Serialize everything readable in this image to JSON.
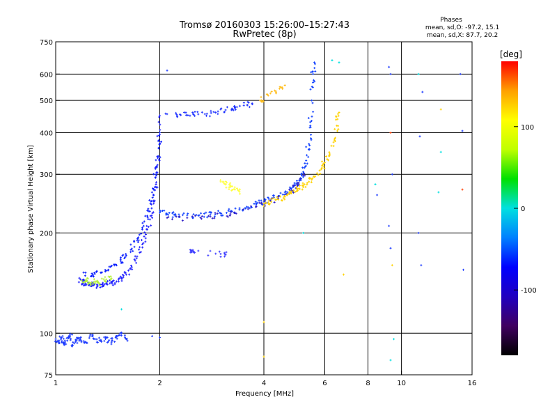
{
  "chart_data": {
    "type": "scatter",
    "title": "Tromsø 20160303 15:26:00–15:27:43",
    "subtitle": "RwPretec (8p)",
    "legend_title": "Phases",
    "legend_lines": [
      "mean, sd,O: -97.2, 15.1",
      "mean, sd,X:  87.7, 20.2"
    ],
    "xlabel": "Frequency [MHz]",
    "ylabel": "Stationary phase Virtual Height [km]",
    "x_scale": "log2",
    "y_scale": "log",
    "xlim": [
      1,
      16
    ],
    "ylim": [
      75,
      750
    ],
    "x_ticks": [
      {
        "value": 1,
        "label": "1"
      },
      {
        "value": 2,
        "label": "2"
      },
      {
        "value": 4,
        "label": "4"
      },
      {
        "value": 6,
        "label": "6"
      },
      {
        "value": 8,
        "label": "8"
      },
      {
        "value": 10,
        "label": "10"
      },
      {
        "value": 16,
        "label": "16"
      }
    ],
    "y_ticks": [
      {
        "value": 75,
        "label": "75"
      },
      {
        "value": 100,
        "label": "100"
      },
      {
        "value": 200,
        "label": "200"
      },
      {
        "value": 300,
        "label": "300"
      },
      {
        "value": 400,
        "label": "400"
      },
      {
        "value": 500,
        "label": "500"
      },
      {
        "value": 600,
        "label": "600"
      },
      {
        "value": 750,
        "label": "750"
      }
    ],
    "x_gridlines": [
      2,
      4,
      6,
      8,
      10
    ],
    "y_gridlines": [
      100,
      200,
      300,
      400,
      500,
      600
    ],
    "colorbar": {
      "label": "[deg]",
      "range": [
        -180,
        180
      ],
      "ticks": [
        {
          "value": 100,
          "label": "100"
        },
        {
          "value": 0,
          "label": "0"
        },
        {
          "value": -100,
          "label": "-100"
        }
      ],
      "colors": [
        "#000000",
        "#400060",
        "#2000c0",
        "#0000ff",
        "#0080ff",
        "#00e0e0",
        "#00e000",
        "#c0ff00",
        "#ffff00",
        "#ffa000",
        "#ff0000"
      ]
    },
    "series": [
      {
        "color": "#1e3cff",
        "points": [
          [
            1.0,
            96
          ],
          [
            1.02,
            94
          ],
          [
            1.04,
            97
          ],
          [
            1.06,
            93
          ],
          [
            1.08,
            95
          ],
          [
            1.1,
            98
          ],
          [
            1.12,
            92
          ],
          [
            1.15,
            96
          ],
          [
            1.18,
            97
          ],
          [
            1.22,
            94
          ],
          [
            1.26,
            99
          ],
          [
            1.3,
            96
          ],
          [
            1.35,
            95
          ],
          [
            1.4,
            97
          ],
          [
            1.45,
            94
          ],
          [
            1.5,
            98
          ],
          [
            1.55,
            100
          ],
          [
            1.6,
            96
          ]
        ]
      },
      {
        "color": "#2020ff",
        "points": [
          [
            1.18,
            145
          ],
          [
            1.2,
            143
          ],
          [
            1.22,
            141
          ],
          [
            1.25,
            140
          ],
          [
            1.28,
            139
          ],
          [
            1.32,
            139
          ],
          [
            1.36,
            140
          ],
          [
            1.4,
            141
          ],
          [
            1.45,
            142
          ],
          [
            1.5,
            143
          ],
          [
            1.55,
            146
          ],
          [
            1.6,
            150
          ],
          [
            1.66,
            158
          ],
          [
            1.72,
            170
          ],
          [
            1.78,
            185
          ],
          [
            1.84,
            205
          ],
          [
            1.88,
            225
          ],
          [
            1.92,
            250
          ],
          [
            1.95,
            280
          ],
          [
            1.97,
            320
          ],
          [
            1.99,
            380
          ],
          [
            2.0,
            450
          ]
        ]
      },
      {
        "color": "#0a1eff",
        "points": [
          [
            1.22,
            152
          ],
          [
            1.28,
            150
          ],
          [
            1.35,
            152
          ],
          [
            1.42,
            155
          ],
          [
            1.5,
            160
          ],
          [
            1.58,
            168
          ],
          [
            1.65,
            178
          ],
          [
            1.72,
            190
          ],
          [
            1.78,
            205
          ],
          [
            1.84,
            225
          ],
          [
            1.88,
            245
          ],
          [
            1.92,
            270
          ],
          [
            1.95,
            300
          ],
          [
            1.98,
            340
          ],
          [
            2.0,
            400
          ]
        ]
      },
      {
        "color": "#b4f03c",
        "points": [
          [
            1.2,
            142
          ],
          [
            1.23,
            144
          ],
          [
            1.26,
            141
          ],
          [
            1.3,
            143
          ],
          [
            1.34,
            141
          ],
          [
            1.4,
            145
          ],
          [
            1.45,
            146
          ]
        ]
      },
      {
        "color": "#1040ff",
        "points": [
          [
            2.0,
            230
          ],
          [
            2.1,
            228
          ],
          [
            2.2,
            227
          ],
          [
            2.4,
            226
          ],
          [
            2.6,
            226
          ],
          [
            2.8,
            227
          ],
          [
            3.0,
            229
          ],
          [
            3.2,
            232
          ],
          [
            3.4,
            235
          ],
          [
            3.6,
            239
          ],
          [
            3.8,
            243
          ],
          [
            4.0,
            248
          ],
          [
            4.2,
            253
          ],
          [
            4.4,
            258
          ],
          [
            4.6,
            265
          ],
          [
            4.8,
            272
          ],
          [
            5.0,
            282
          ],
          [
            5.1,
            292
          ],
          [
            5.2,
            305
          ],
          [
            5.3,
            330
          ],
          [
            5.4,
            370
          ],
          [
            5.45,
            420
          ],
          [
            5.5,
            500
          ],
          [
            5.55,
            600
          ],
          [
            5.6,
            650
          ]
        ]
      },
      {
        "color": "#301ec8",
        "points": [
          [
            2.1,
            222
          ],
          [
            2.4,
            222
          ],
          [
            2.8,
            224
          ],
          [
            3.2,
            228
          ],
          [
            3.6,
            236
          ],
          [
            4.0,
            244
          ],
          [
            4.4,
            254
          ],
          [
            4.8,
            268
          ],
          [
            5.0,
            278
          ],
          [
            5.2,
            298
          ]
        ]
      },
      {
        "color": "#ffd200",
        "points": [
          [
            4.0,
            245
          ],
          [
            4.2,
            248
          ],
          [
            4.4,
            252
          ],
          [
            4.6,
            257
          ],
          [
            4.8,
            263
          ],
          [
            5.0,
            270
          ],
          [
            5.2,
            277
          ],
          [
            5.4,
            285
          ],
          [
            5.6,
            295
          ],
          [
            5.8,
            308
          ],
          [
            6.0,
            325
          ],
          [
            6.2,
            345
          ],
          [
            6.4,
            380
          ],
          [
            6.5,
            420
          ],
          [
            6.6,
            460
          ]
        ]
      },
      {
        "color": "#ffff3c",
        "points": [
          [
            3.0,
            285
          ],
          [
            3.1,
            280
          ],
          [
            3.2,
            275
          ],
          [
            3.3,
            270
          ],
          [
            3.4,
            266
          ]
        ]
      },
      {
        "color": "#1e32ff",
        "points": [
          [
            2.1,
            455
          ],
          [
            2.3,
            452
          ],
          [
            2.5,
            455
          ],
          [
            2.7,
            455
          ],
          [
            2.9,
            460
          ],
          [
            3.1,
            468
          ],
          [
            3.3,
            476
          ],
          [
            3.5,
            483
          ],
          [
            3.7,
            490
          ]
        ]
      },
      {
        "color": "#3c3cff",
        "points": [
          [
            2.45,
            178
          ],
          [
            2.5,
            176
          ],
          [
            3.0,
            173
          ],
          [
            3.1,
            172
          ]
        ]
      },
      {
        "color": "#ffbe1e",
        "points": [
          [
            3.9,
            500
          ],
          [
            4.1,
            520
          ],
          [
            4.3,
            535
          ],
          [
            4.6,
            555
          ]
        ]
      }
    ],
    "scattered_points": [
      {
        "x": 2.1,
        "y": 615,
        "color": "#1e3cff"
      },
      {
        "x": 6.3,
        "y": 660,
        "color": "#00e0e0"
      },
      {
        "x": 6.6,
        "y": 650,
        "color": "#00e0e0"
      },
      {
        "x": 9.2,
        "y": 630,
        "color": "#1e3cff"
      },
      {
        "x": 9.3,
        "y": 600,
        "color": "#1e3cff"
      },
      {
        "x": 9.3,
        "y": 400,
        "color": "#ff3c00"
      },
      {
        "x": 9.4,
        "y": 300,
        "color": "#1e3cff"
      },
      {
        "x": 9.2,
        "y": 210,
        "color": "#1e3cff"
      },
      {
        "x": 9.3,
        "y": 180,
        "color": "#1e3cff"
      },
      {
        "x": 9.4,
        "y": 160,
        "color": "#ffd200"
      },
      {
        "x": 9.5,
        "y": 96,
        "color": "#00e0e0"
      },
      {
        "x": 9.3,
        "y": 83,
        "color": "#00e0e0"
      },
      {
        "x": 11.2,
        "y": 600,
        "color": "#00e0e0"
      },
      {
        "x": 11.5,
        "y": 530,
        "color": "#1e3cff"
      },
      {
        "x": 11.3,
        "y": 390,
        "color": "#1e3cff"
      },
      {
        "x": 11.2,
        "y": 200,
        "color": "#1e3cff"
      },
      {
        "x": 11.4,
        "y": 160,
        "color": "#1e3cff"
      },
      {
        "x": 13.0,
        "y": 470,
        "color": "#ffd200"
      },
      {
        "x": 13.0,
        "y": 350,
        "color": "#00e0e0"
      },
      {
        "x": 12.8,
        "y": 265,
        "color": "#00e0e0"
      },
      {
        "x": 14.8,
        "y": 600,
        "color": "#1e3cff"
      },
      {
        "x": 15.0,
        "y": 405,
        "color": "#1e3cff"
      },
      {
        "x": 15.0,
        "y": 270,
        "color": "#ff3c00"
      },
      {
        "x": 15.1,
        "y": 155,
        "color": "#1e3cff"
      },
      {
        "x": 8.4,
        "y": 280,
        "color": "#00e0e0"
      },
      {
        "x": 8.5,
        "y": 260,
        "color": "#1e3cff"
      },
      {
        "x": 4.0,
        "y": 85,
        "color": "#ffd200"
      },
      {
        "x": 4.0,
        "y": 108,
        "color": "#ffd200"
      },
      {
        "x": 5.2,
        "y": 200,
        "color": "#00e0e0"
      },
      {
        "x": 6.8,
        "y": 150,
        "color": "#ffd200"
      },
      {
        "x": 1.55,
        "y": 118,
        "color": "#00e0e0"
      },
      {
        "x": 1.9,
        "y": 98,
        "color": "#1e3cff"
      },
      {
        "x": 2.0,
        "y": 97,
        "color": "#1e3cff"
      }
    ]
  }
}
